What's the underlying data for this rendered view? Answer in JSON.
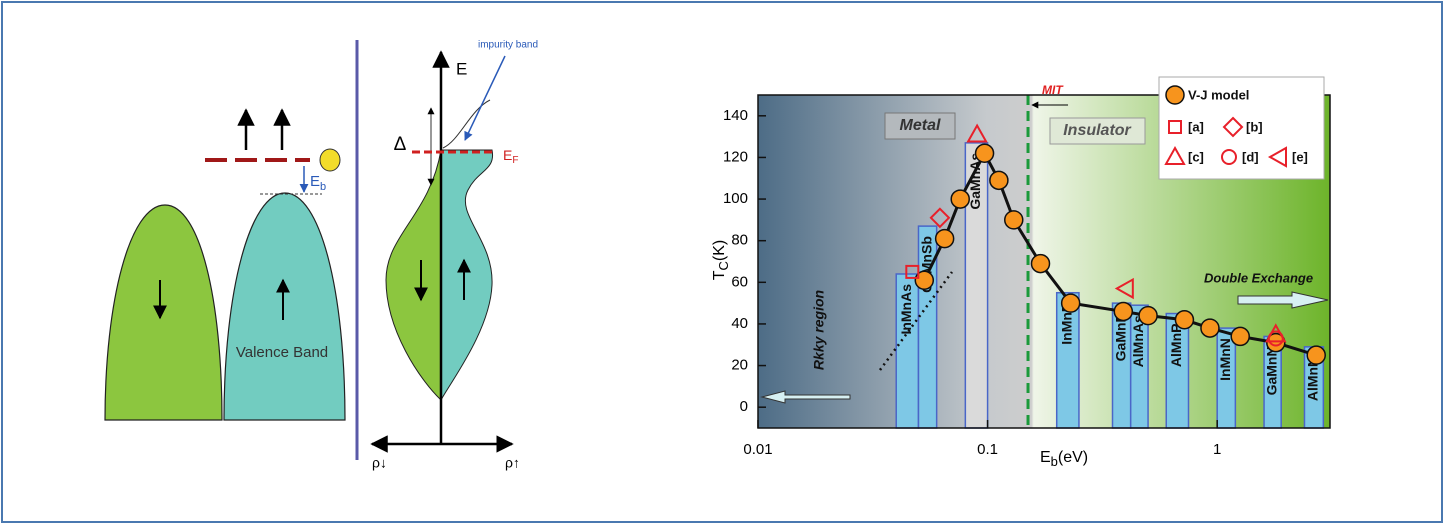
{
  "diagram": {
    "valence_band": "Valence Band",
    "eb_main": "E",
    "eb_sub": "b",
    "delta": "Δ",
    "energy": "E",
    "impurity_band": "impurity band",
    "ef_main": "E",
    "ef_sub": "F",
    "rho_down": "ρ↓",
    "rho_up": "ρ↑"
  },
  "chart_data": {
    "type": "line",
    "xlabel_main": "E",
    "xlabel_sub": "b",
    "xlabel_unit": "(eV)",
    "ylabel_main": "T",
    "ylabel_sub": "C",
    "ylabel_unit": "(K)",
    "xscale": "log",
    "xlim": [
      0.01,
      3.1
    ],
    "xticks": [
      0.01,
      0.1,
      1
    ],
    "ylim": [
      -10,
      150
    ],
    "yticks": [
      0,
      20,
      40,
      60,
      80,
      100,
      120,
      140
    ],
    "series": [
      {
        "name": "V-J model",
        "color": "#f7941d",
        "marker": "circle",
        "x": [
          0.053,
          0.065,
          0.076,
          0.097,
          0.112,
          0.13,
          0.17,
          0.23,
          0.39,
          0.5,
          0.72,
          0.93,
          1.26,
          1.8,
          2.7
        ],
        "values": [
          61,
          81,
          100,
          122,
          109,
          90,
          69,
          50,
          46,
          44,
          42,
          38,
          34,
          31,
          25
        ]
      },
      {
        "name": "[a]",
        "color": "#e8202a",
        "marker": "square",
        "x": [
          0.047
        ],
        "values": [
          65
        ]
      },
      {
        "name": "[b]",
        "color": "#e8202a",
        "marker": "diamond",
        "x": [
          0.062
        ],
        "values": [
          91
        ]
      },
      {
        "name": "[c]",
        "color": "#e8202a",
        "marker": "triangle",
        "x": [
          0.09,
          1.8
        ],
        "values": [
          131,
          35
        ]
      },
      {
        "name": "[d]",
        "color": "#e8202a",
        "marker": "circle-open",
        "x": [
          1.8
        ],
        "values": [
          33
        ]
      },
      {
        "name": "[e]",
        "color": "#e8202a",
        "marker": "triangle-left",
        "x": [
          0.4
        ],
        "values": [
          57
        ]
      }
    ],
    "bars": {
      "labels": [
        "InMnAs",
        "GaMnSb",
        "GaMnAs",
        "InMnP",
        "GaMnP",
        "AlMnAs",
        "AlMnP",
        "InMnN",
        "GaMnN",
        "AlMnN"
      ],
      "left": [
        0.04,
        0.05,
        0.08,
        0.2,
        0.35,
        0.42,
        0.6,
        1.0,
        1.6,
        2.4
      ],
      "right": [
        0.05,
        0.06,
        0.1,
        0.25,
        0.42,
        0.5,
        0.75,
        1.2,
        1.9,
        2.9
      ],
      "values": [
        64,
        87,
        127,
        55,
        50,
        49,
        45,
        38,
        34,
        29
      ],
      "colors": [
        "#7ec8e6",
        "#7ec8e6",
        "#dadada",
        "#7ec8e6",
        "#7ec8e6",
        "#7ec8e6",
        "#7ec8e6",
        "#7ec8e6",
        "#7ec8e6",
        "#7ec8e6"
      ]
    },
    "annotations": {
      "metal": "Metal",
      "insulator": "Insulator",
      "mit": "MIT",
      "mit_x": 0.15,
      "double_exchange": "Double Exchange",
      "rkky": "Rkky region"
    },
    "legend": "upper right"
  }
}
